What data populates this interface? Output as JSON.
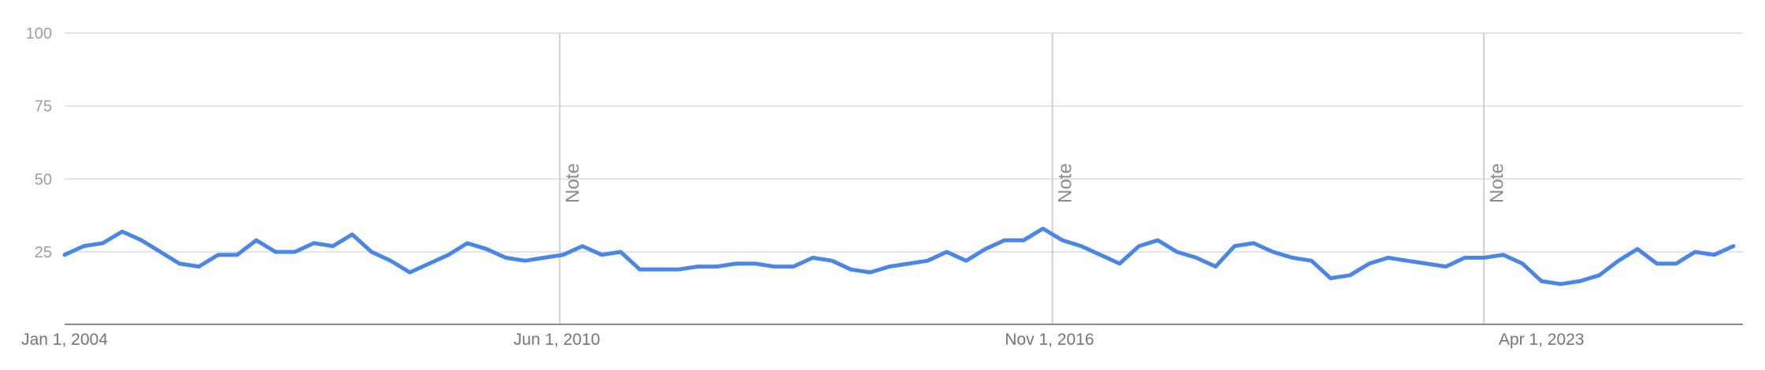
{
  "chart_data": {
    "type": "line",
    "title": "",
    "xlabel": "",
    "ylabel": "",
    "ylim": [
      0,
      100
    ],
    "xlim": [
      "2004-01-01",
      "2025-11-15"
    ],
    "grid": true,
    "y_ticks": [
      25,
      50,
      75,
      100
    ],
    "x_ticks": [
      {
        "date": "2004-01-01",
        "label": "Jan 1, 2004"
      },
      {
        "date": "2010-06-01",
        "label": "Jun 1, 2010"
      },
      {
        "date": "2016-11-01",
        "label": "Nov 1, 2016"
      },
      {
        "date": "2023-04-01",
        "label": "Apr 1, 2023"
      }
    ],
    "notes": [
      {
        "date": "2010-06-15",
        "label": "Note"
      },
      {
        "date": "2016-11-15",
        "label": "Note"
      },
      {
        "date": "2022-07-01",
        "label": "Note"
      }
    ],
    "series": [
      {
        "color": "#4a86e8",
        "points": [
          [
            "2004-01-01",
            24
          ],
          [
            "2004-04-01",
            27
          ],
          [
            "2004-07-01",
            28
          ],
          [
            "2004-10-01",
            32
          ],
          [
            "2005-01-01",
            29
          ],
          [
            "2005-04-01",
            25
          ],
          [
            "2005-07-01",
            21
          ],
          [
            "2005-10-01",
            20
          ],
          [
            "2006-01-01",
            24
          ],
          [
            "2006-04-01",
            24
          ],
          [
            "2006-07-01",
            29
          ],
          [
            "2006-10-01",
            25
          ],
          [
            "2007-01-01",
            25
          ],
          [
            "2007-04-01",
            28
          ],
          [
            "2007-07-01",
            27
          ],
          [
            "2007-10-01",
            31
          ],
          [
            "2008-01-01",
            25
          ],
          [
            "2008-04-01",
            22
          ],
          [
            "2008-07-01",
            18
          ],
          [
            "2008-10-01",
            21
          ],
          [
            "2009-01-01",
            24
          ],
          [
            "2009-04-01",
            28
          ],
          [
            "2009-07-01",
            26
          ],
          [
            "2009-10-01",
            23
          ],
          [
            "2010-01-01",
            22
          ],
          [
            "2010-04-01",
            23
          ],
          [
            "2010-07-01",
            24
          ],
          [
            "2010-10-01",
            27
          ],
          [
            "2011-01-01",
            24
          ],
          [
            "2011-04-01",
            25
          ],
          [
            "2011-07-01",
            19
          ],
          [
            "2011-10-01",
            19
          ],
          [
            "2012-01-01",
            19
          ],
          [
            "2012-04-01",
            20
          ],
          [
            "2012-07-01",
            20
          ],
          [
            "2012-10-01",
            21
          ],
          [
            "2013-01-01",
            21
          ],
          [
            "2013-04-01",
            20
          ],
          [
            "2013-07-01",
            20
          ],
          [
            "2013-10-01",
            23
          ],
          [
            "2014-01-01",
            22
          ],
          [
            "2014-04-01",
            19
          ],
          [
            "2014-07-01",
            18
          ],
          [
            "2014-10-01",
            20
          ],
          [
            "2015-01-01",
            21
          ],
          [
            "2015-04-01",
            22
          ],
          [
            "2015-07-01",
            25
          ],
          [
            "2015-10-01",
            22
          ],
          [
            "2016-01-01",
            26
          ],
          [
            "2016-04-01",
            29
          ],
          [
            "2016-07-01",
            29
          ],
          [
            "2016-10-01",
            33
          ],
          [
            "2017-01-01",
            29
          ],
          [
            "2017-04-01",
            27
          ],
          [
            "2017-07-01",
            24
          ],
          [
            "2017-10-01",
            21
          ],
          [
            "2018-01-01",
            27
          ],
          [
            "2018-04-01",
            29
          ],
          [
            "2018-07-01",
            25
          ],
          [
            "2018-10-01",
            23
          ],
          [
            "2019-01-01",
            20
          ],
          [
            "2019-04-01",
            27
          ],
          [
            "2019-07-01",
            28
          ],
          [
            "2019-10-01",
            25
          ],
          [
            "2020-01-01",
            23
          ],
          [
            "2020-04-01",
            22
          ],
          [
            "2020-07-01",
            16
          ],
          [
            "2020-10-01",
            17
          ],
          [
            "2021-01-01",
            21
          ],
          [
            "2021-04-01",
            23
          ],
          [
            "2021-07-01",
            22
          ],
          [
            "2021-10-01",
            21
          ],
          [
            "2022-01-01",
            20
          ],
          [
            "2022-04-01",
            23
          ],
          [
            "2022-07-01",
            23
          ],
          [
            "2022-10-01",
            24
          ],
          [
            "2023-01-01",
            21
          ],
          [
            "2023-04-01",
            15
          ],
          [
            "2023-07-01",
            14
          ],
          [
            "2023-10-01",
            15
          ],
          [
            "2024-01-01",
            17
          ],
          [
            "2024-04-01",
            22
          ],
          [
            "2024-07-01",
            26
          ],
          [
            "2024-10-01",
            21
          ],
          [
            "2025-01-01",
            21
          ],
          [
            "2025-04-01",
            25
          ],
          [
            "2025-07-01",
            24
          ],
          [
            "2025-10-01",
            27
          ]
        ]
      }
    ]
  }
}
